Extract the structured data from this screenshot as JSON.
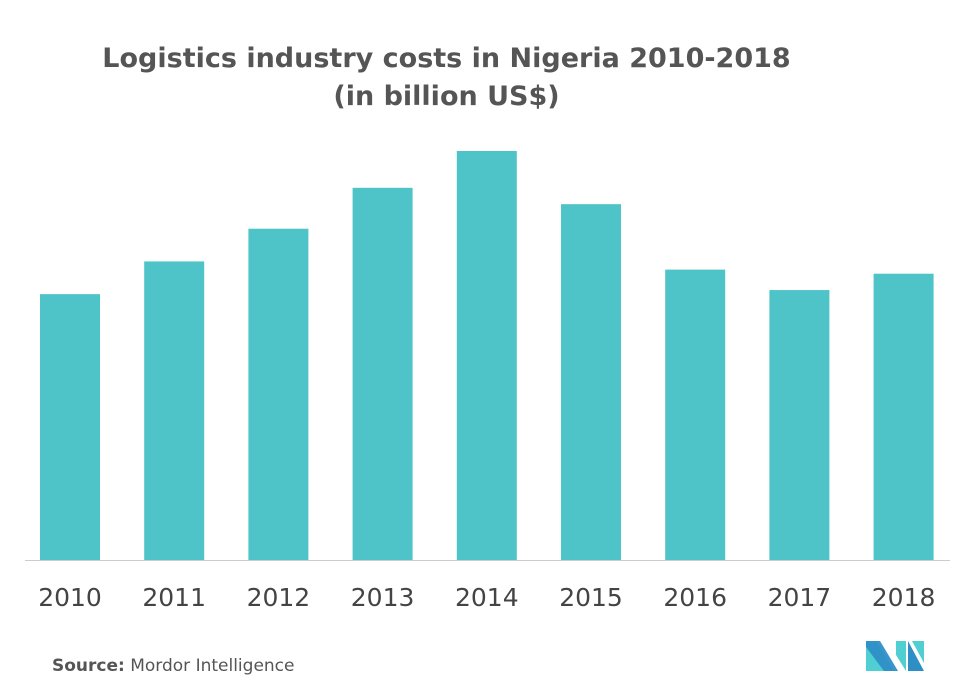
{
  "chart_data": {
    "type": "bar",
    "title": "Logistics industry costs in Nigeria 2010-2018",
    "subtitle": "(in billion US$)",
    "categories": [
      "2010",
      "2011",
      "2012",
      "2013",
      "2014",
      "2015",
      "2016",
      "2017",
      "2018"
    ],
    "values": [
      65,
      73,
      81,
      91,
      100,
      87,
      71,
      66,
      70
    ],
    "ylim": [
      0,
      100
    ],
    "xlabel": "",
    "ylabel": "",
    "grid": false,
    "bar_color": "#4fc4c8"
  },
  "source": {
    "label": "Source:",
    "text": "Mordor Intelligence"
  },
  "logo": {
    "text": "Mordor Intelligence",
    "colors": [
      "#2e8fc7",
      "#4fcfd1"
    ]
  }
}
